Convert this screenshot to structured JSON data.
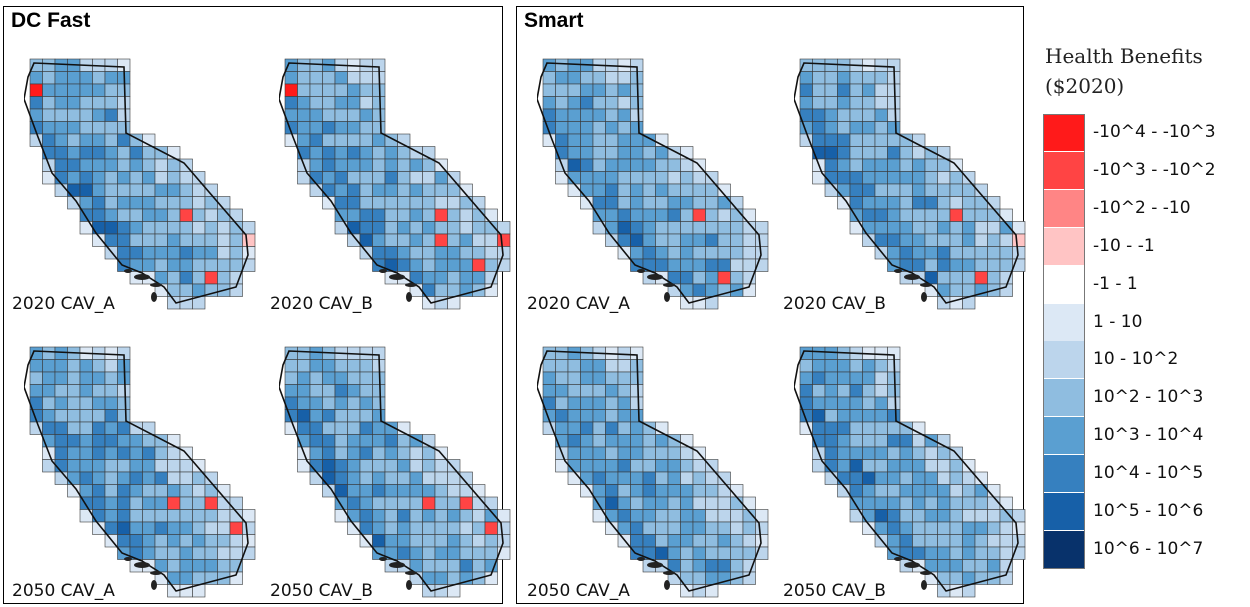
{
  "panels": [
    {
      "title": "DC Fast",
      "maps": [
        {
          "label": "2020 CAV_A",
          "negatives": [
            {
              "col": 0,
              "row": 2,
              "level": "-10^4 - -10^3"
            },
            {
              "col": 12,
              "row": 12,
              "level": "-10^3 - -10^2"
            },
            {
              "col": 17,
              "row": 14,
              "level": "-10 - -1"
            },
            {
              "col": 14,
              "row": 17,
              "level": "-10^3 - -10^2"
            }
          ]
        },
        {
          "label": "2020 CAV_B",
          "negatives": [
            {
              "col": 0,
              "row": 2,
              "level": "-10^4 - -10^3"
            },
            {
              "col": 12,
              "row": 12,
              "level": "-10^3 - -10^2"
            },
            {
              "col": 12,
              "row": 14,
              "level": "-10^3 - -10^2"
            },
            {
              "col": 17,
              "row": 14,
              "level": "-10^3 - -10^2"
            },
            {
              "col": 15,
              "row": 16,
              "level": "-10^3 - -10^2"
            }
          ]
        },
        {
          "label": "2050 CAV_A",
          "negatives": [
            {
              "col": 11,
              "row": 12,
              "level": "-10^3 - -10^2"
            },
            {
              "col": 14,
              "row": 12,
              "level": "-10^3 - -10^2"
            },
            {
              "col": 16,
              "row": 14,
              "level": "-10^3 - -10^2"
            }
          ]
        },
        {
          "label": "2050 CAV_B",
          "negatives": [
            {
              "col": 11,
              "row": 12,
              "level": "-10^3 - -10^2"
            },
            {
              "col": 14,
              "row": 12,
              "level": "-10^3 - -10^2"
            },
            {
              "col": 16,
              "row": 14,
              "level": "-10^3 - -10^2"
            }
          ]
        }
      ]
    },
    {
      "title": "Smart",
      "maps": [
        {
          "label": "2020 CAV_A",
          "negatives": [
            {
              "col": 12,
              "row": 12,
              "level": "-10^3 - -10^2"
            },
            {
              "col": 14,
              "row": 17,
              "level": "-10^3 - -10^2"
            }
          ]
        },
        {
          "label": "2020 CAV_B",
          "negatives": [
            {
              "col": 12,
              "row": 12,
              "level": "-10^3 - -10^2"
            },
            {
              "col": 17,
              "row": 14,
              "level": "-10 - -1"
            },
            {
              "col": 14,
              "row": 17,
              "level": "-10^3 - -10^2"
            }
          ]
        },
        {
          "label": "2050 CAV_A",
          "negatives": []
        },
        {
          "label": "2050 CAV_B",
          "negatives": []
        }
      ]
    }
  ],
  "legend": {
    "title_line1": "Health Benefits",
    "title_line2": "($2020)",
    "items": [
      {
        "label": "-10^4 - -10^3",
        "color": "#ff1a1a"
      },
      {
        "label": "-10^3 - -10^2",
        "color": "#ff4444"
      },
      {
        "label": "-10^2 - -10",
        "color": "#ff8585"
      },
      {
        "label": "-10 - -1",
        "color": "#ffc4c4"
      },
      {
        "label": "-1 - 1",
        "color": "#ffffff"
      },
      {
        "label": "1 - 10",
        "color": "#dce8f5"
      },
      {
        "label": "10 - 10^2",
        "color": "#bcd5ec"
      },
      {
        "label": "10^2 - 10^3",
        "color": "#8fbde0"
      },
      {
        "label": "10^3 - 10^4",
        "color": "#5a9fd1"
      },
      {
        "label": "10^4 - 10^5",
        "color": "#3680bf"
      },
      {
        "label": "10^5 - 10^6",
        "color": "#1760a8"
      },
      {
        "label": "10^6 - 10^7",
        "color": "#08326b"
      }
    ]
  }
}
